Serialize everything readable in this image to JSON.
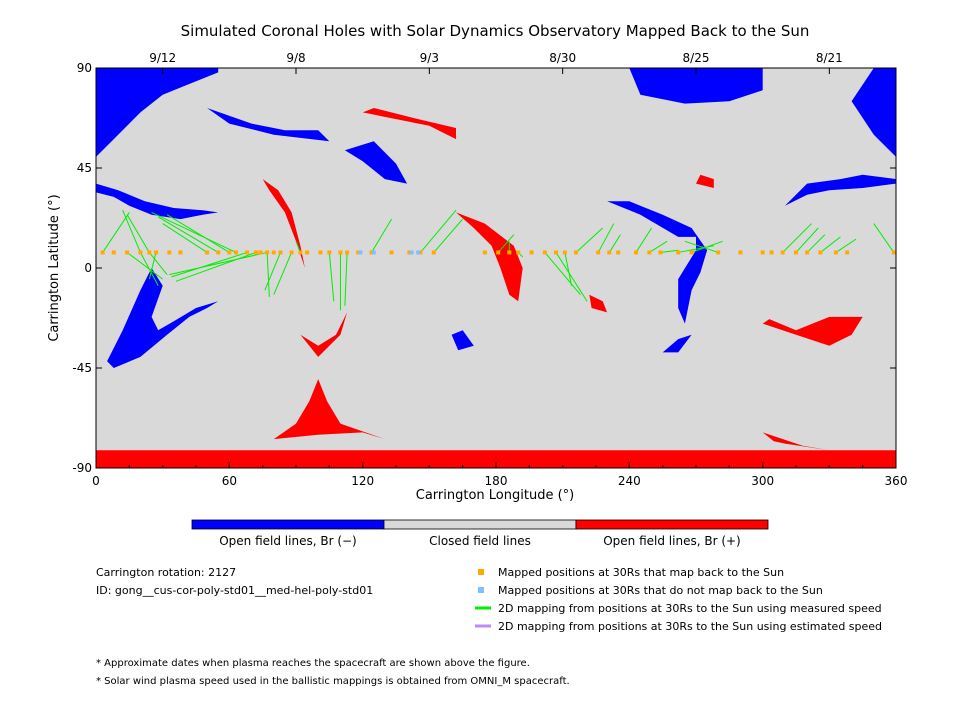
{
  "chart_data": {
    "type": "map",
    "title": "Simulated Coronal Holes with Solar Dynamics Observatory Mapped Back to the Sun",
    "xlabel": "Carrington Longitude (°)",
    "ylabel": "Carrington Latitude (°)",
    "xlim": [
      0,
      360
    ],
    "ylim": [
      -90,
      90
    ],
    "x_ticks": [
      0,
      60,
      120,
      180,
      240,
      300,
      360
    ],
    "y_ticks": [
      90,
      45,
      0,
      -45,
      -90
    ],
    "y_tick_labels": [
      "90",
      "45",
      "0",
      "-45",
      "-90"
    ],
    "top_dates": [
      {
        "lon": 30,
        "label": "9/12"
      },
      {
        "lon": 90,
        "label": "9/8"
      },
      {
        "lon": 150,
        "label": "9/3"
      },
      {
        "lon": 210,
        "label": "8/30"
      },
      {
        "lon": 270,
        "label": "8/25"
      },
      {
        "lon": 330,
        "label": "8/21"
      }
    ],
    "colors": {
      "neg": "#0000ff",
      "closed": "#d9d9d9",
      "pos": "#ff0000",
      "mapped": "#ffaa00",
      "unmapped": "#80bfff",
      "measured": "#00ee00",
      "estimated": "#bb88ff"
    },
    "regions": {
      "negative": [
        [
          [
            0,
            90
          ],
          [
            55,
            90
          ],
          [
            55,
            88
          ],
          [
            40,
            82
          ],
          [
            30,
            78
          ],
          [
            20,
            70
          ],
          [
            10,
            60
          ],
          [
            0,
            50
          ]
        ],
        [
          [
            0,
            38
          ],
          [
            10,
            35
          ],
          [
            22,
            30
          ],
          [
            35,
            27
          ],
          [
            48,
            26
          ],
          [
            55,
            25
          ],
          [
            48,
            24
          ],
          [
            38,
            22
          ],
          [
            25,
            24
          ],
          [
            15,
            28
          ],
          [
            8,
            32
          ],
          [
            0,
            34
          ]
        ],
        [
          [
            5,
            -42
          ],
          [
            8,
            -45
          ],
          [
            20,
            -40
          ],
          [
            32,
            -30
          ],
          [
            42,
            -22
          ],
          [
            50,
            -18
          ],
          [
            55,
            -15
          ],
          [
            45,
            -18
          ],
          [
            35,
            -24
          ],
          [
            28,
            -28
          ],
          [
            25,
            -22
          ],
          [
            30,
            -8
          ],
          [
            25,
            0
          ],
          [
            20,
            -10
          ],
          [
            12,
            -28
          ]
        ],
        [
          [
            125,
            57
          ],
          [
            135,
            47
          ],
          [
            140,
            38
          ],
          [
            130,
            40
          ],
          [
            120,
            48
          ],
          [
            112,
            53
          ]
        ],
        [
          [
            50,
            72
          ],
          [
            70,
            65
          ],
          [
            85,
            62
          ],
          [
            100,
            62
          ],
          [
            105,
            57
          ],
          [
            80,
            60
          ],
          [
            60,
            65
          ]
        ],
        [
          [
            350,
            90
          ],
          [
            360,
            90
          ],
          [
            360,
            50
          ],
          [
            350,
            60
          ],
          [
            340,
            75
          ]
        ],
        [
          [
            310,
            28
          ],
          [
            320,
            38
          ],
          [
            335,
            40
          ],
          [
            345,
            42
          ],
          [
            360,
            40
          ],
          [
            360,
            38
          ],
          [
            345,
            36
          ],
          [
            330,
            35
          ],
          [
            320,
            33
          ]
        ],
        [
          [
            230,
            30
          ],
          [
            245,
            24
          ],
          [
            262,
            14
          ],
          [
            270,
            14
          ],
          [
            270,
            8
          ],
          [
            262,
            -5
          ],
          [
            262,
            -18
          ],
          [
            265,
            -25
          ],
          [
            268,
            -10
          ],
          [
            272,
            -2
          ],
          [
            275,
            8
          ],
          [
            268,
            18
          ],
          [
            255,
            24
          ],
          [
            240,
            30
          ]
        ],
        [
          [
            255,
            -38
          ],
          [
            262,
            -38
          ],
          [
            268,
            -30
          ],
          [
            262,
            -32
          ]
        ],
        [
          [
            160,
            -30
          ],
          [
            163,
            -37
          ],
          [
            170,
            -35
          ],
          [
            165,
            -28
          ]
        ],
        [
          [
            240,
            90
          ],
          [
            300,
            90
          ],
          [
            300,
            80
          ],
          [
            285,
            75
          ],
          [
            265,
            74
          ],
          [
            245,
            78
          ]
        ]
      ],
      "positive": [
        [
          [
            0,
            -82
          ],
          [
            360,
            -82
          ],
          [
            360,
            -90
          ],
          [
            0,
            -90
          ]
        ],
        [
          [
            100,
            -50
          ],
          [
            96,
            -60
          ],
          [
            90,
            -70
          ],
          [
            80,
            -77
          ],
          [
            100,
            -75
          ],
          [
            120,
            -74
          ],
          [
            130,
            -77
          ],
          [
            110,
            -70
          ],
          [
            104,
            -60
          ]
        ],
        [
          [
            300,
            -74
          ],
          [
            318,
            -80
          ],
          [
            330,
            -82
          ],
          [
            310,
            -79
          ],
          [
            305,
            -78
          ]
        ],
        [
          [
            75,
            40
          ],
          [
            82,
            35
          ],
          [
            88,
            25
          ],
          [
            92,
            10
          ],
          [
            94,
            0
          ],
          [
            90,
            12
          ],
          [
            85,
            25
          ],
          [
            78,
            35
          ]
        ],
        [
          [
            92,
            -30
          ],
          [
            100,
            -40
          ],
          [
            110,
            -30
          ],
          [
            113,
            -20
          ],
          [
            108,
            -30
          ],
          [
            100,
            -35
          ]
        ],
        [
          [
            120,
            70
          ],
          [
            150,
            64
          ],
          [
            162,
            58
          ],
          [
            162,
            63
          ],
          [
            145,
            67
          ],
          [
            125,
            72
          ]
        ],
        [
          [
            162,
            25
          ],
          [
            175,
            20
          ],
          [
            188,
            10
          ],
          [
            192,
            0
          ],
          [
            190,
            -15
          ],
          [
            186,
            -12
          ],
          [
            182,
            0
          ],
          [
            178,
            10
          ],
          [
            170,
            18
          ]
        ],
        [
          [
            222,
            -12
          ],
          [
            228,
            -15
          ],
          [
            230,
            -20
          ],
          [
            223,
            -18
          ]
        ],
        [
          [
            272,
            42
          ],
          [
            278,
            40
          ],
          [
            278,
            36
          ],
          [
            270,
            38
          ]
        ],
        [
          [
            300,
            -25
          ],
          [
            315,
            -30
          ],
          [
            330,
            -35
          ],
          [
            340,
            -30
          ],
          [
            345,
            -22
          ],
          [
            330,
            -22
          ],
          [
            315,
            -28
          ],
          [
            303,
            -23
          ]
        ]
      ]
    },
    "mapped_points": [
      [
        3,
        7
      ],
      [
        8,
        7
      ],
      [
        14,
        7
      ],
      [
        20,
        7
      ],
      [
        24,
        7
      ],
      [
        27,
        7
      ],
      [
        33,
        7
      ],
      [
        38,
        7
      ],
      [
        50,
        7
      ],
      [
        55,
        7
      ],
      [
        60,
        7
      ],
      [
        63,
        7
      ],
      [
        68,
        7
      ],
      [
        72,
        7
      ],
      [
        74,
        7
      ],
      [
        77,
        7
      ],
      [
        80,
        7
      ],
      [
        83,
        7
      ],
      [
        88,
        7
      ],
      [
        92,
        7
      ],
      [
        95,
        7
      ],
      [
        101,
        7
      ],
      [
        105,
        7
      ],
      [
        110,
        7
      ],
      [
        113,
        7
      ],
      [
        118,
        7
      ],
      [
        124,
        7
      ],
      [
        133,
        7
      ],
      [
        141,
        7
      ],
      [
        146,
        7
      ],
      [
        152,
        7
      ],
      [
        175,
        7
      ],
      [
        181,
        7
      ],
      [
        186,
        7
      ],
      [
        190,
        7
      ],
      [
        196,
        7
      ],
      [
        202,
        7
      ],
      [
        207,
        7
      ],
      [
        211,
        7
      ],
      [
        216,
        7
      ],
      [
        226,
        7
      ],
      [
        231,
        7
      ],
      [
        235,
        7
      ],
      [
        243,
        7
      ],
      [
        249,
        7
      ],
      [
        254,
        7
      ],
      [
        262,
        7
      ],
      [
        268,
        7
      ],
      [
        280,
        7
      ],
      [
        290,
        7
      ],
      [
        300,
        7
      ],
      [
        304,
        7
      ],
      [
        309,
        7
      ],
      [
        315,
        7
      ],
      [
        320,
        7
      ],
      [
        326,
        7
      ],
      [
        333,
        7
      ],
      [
        338,
        7
      ],
      [
        359,
        7
      ]
    ],
    "unmapped_points": [
      [
        119,
        7
      ],
      [
        125,
        7
      ],
      [
        142,
        7
      ],
      [
        145,
        7
      ]
    ],
    "measured_lines": [
      [
        [
          14,
          7
        ],
        [
          30,
          -5
        ]
      ],
      [
        [
          20,
          7
        ],
        [
          28,
          -8
        ]
      ],
      [
        [
          24,
          7
        ],
        [
          32,
          -3
        ]
      ],
      [
        [
          27,
          7
        ],
        [
          24,
          -5
        ]
      ],
      [
        [
          50,
          7
        ],
        [
          30,
          20
        ]
      ],
      [
        [
          55,
          7
        ],
        [
          28,
          23
        ]
      ],
      [
        [
          60,
          7
        ],
        [
          32,
          24
        ]
      ],
      [
        [
          63,
          7
        ],
        [
          25,
          25
        ]
      ],
      [
        [
          24,
          7
        ],
        [
          14,
          24
        ]
      ],
      [
        [
          20,
          7
        ],
        [
          12,
          26
        ]
      ],
      [
        [
          3,
          7
        ],
        [
          15,
          25
        ]
      ],
      [
        [
          72,
          7
        ],
        [
          36,
          -6
        ]
      ],
      [
        [
          77,
          7
        ],
        [
          33,
          -3
        ]
      ],
      [
        [
          68,
          7
        ],
        [
          34,
          -4
        ]
      ],
      [
        [
          77,
          7
        ],
        [
          78,
          -13
        ]
      ],
      [
        [
          83,
          7
        ],
        [
          76,
          -10
        ]
      ],
      [
        [
          88,
          7
        ],
        [
          80,
          -12
        ]
      ],
      [
        [
          92,
          7
        ],
        [
          90,
          12
        ]
      ],
      [
        [
          105,
          7
        ],
        [
          107,
          -15
        ]
      ],
      [
        [
          110,
          7
        ],
        [
          110,
          -19
        ]
      ],
      [
        [
          113,
          7
        ],
        [
          112,
          -17
        ]
      ],
      [
        [
          124,
          7
        ],
        [
          133,
          22
        ]
      ],
      [
        [
          146,
          7
        ],
        [
          162,
          26
        ]
      ],
      [
        [
          152,
          7
        ],
        [
          165,
          22
        ]
      ],
      [
        [
          181,
          7
        ],
        [
          188,
          15
        ]
      ],
      [
        [
          186,
          7
        ],
        [
          186,
          12
        ]
      ],
      [
        [
          190,
          7
        ],
        [
          192,
          5
        ]
      ],
      [
        [
          202,
          7
        ],
        [
          218,
          -12
        ]
      ],
      [
        [
          207,
          7
        ],
        [
          221,
          -15
        ]
      ],
      [
        [
          211,
          7
        ],
        [
          214,
          -8
        ]
      ],
      [
        [
          216,
          7
        ],
        [
          228,
          18
        ]
      ],
      [
        [
          226,
          7
        ],
        [
          233,
          20
        ]
      ],
      [
        [
          231,
          7
        ],
        [
          236,
          15
        ]
      ],
      [
        [
          243,
          7
        ],
        [
          250,
          18
        ]
      ],
      [
        [
          249,
          7
        ],
        [
          257,
          12
        ]
      ],
      [
        [
          254,
          7
        ],
        [
          262,
          8
        ]
      ],
      [
        [
          262,
          7
        ],
        [
          278,
          10
        ]
      ],
      [
        [
          268,
          7
        ],
        [
          282,
          12
        ]
      ],
      [
        [
          280,
          7
        ],
        [
          265,
          12
        ]
      ],
      [
        [
          309,
          7
        ],
        [
          322,
          20
        ]
      ],
      [
        [
          315,
          7
        ],
        [
          325,
          18
        ]
      ],
      [
        [
          320,
          7
        ],
        [
          328,
          15
        ]
      ],
      [
        [
          326,
          7
        ],
        [
          335,
          14
        ]
      ],
      [
        [
          333,
          7
        ],
        [
          342,
          13
        ]
      ],
      [
        [
          359,
          7
        ],
        [
          350,
          20
        ]
      ]
    ]
  },
  "legend": {
    "bar": {
      "neg_label": "Open field lines, Br (−)",
      "closed_label": "Closed field lines",
      "pos_label": "Open field lines, Br (+)"
    },
    "info": {
      "carrington": "Carrington rotation: 2127",
      "id": "ID: gong__cus-cor-poly-std01__med-hel-poly-std01"
    },
    "items": [
      {
        "label": "Mapped positions at 30Rs that map back to the Sun"
      },
      {
        "label": "Mapped positions at 30Rs that do not map back to the Sun"
      },
      {
        "label": "2D mapping from positions at 30Rs to the Sun using measured speed"
      },
      {
        "label": "2D mapping from positions at 30Rs to the Sun using estimated speed"
      }
    ],
    "notes": [
      "* Approximate dates when plasma reaches the spacecraft are shown above the figure.",
      "* Solar wind plasma speed used in the ballistic mappings is obtained from OMNI_M spacecraft."
    ]
  }
}
